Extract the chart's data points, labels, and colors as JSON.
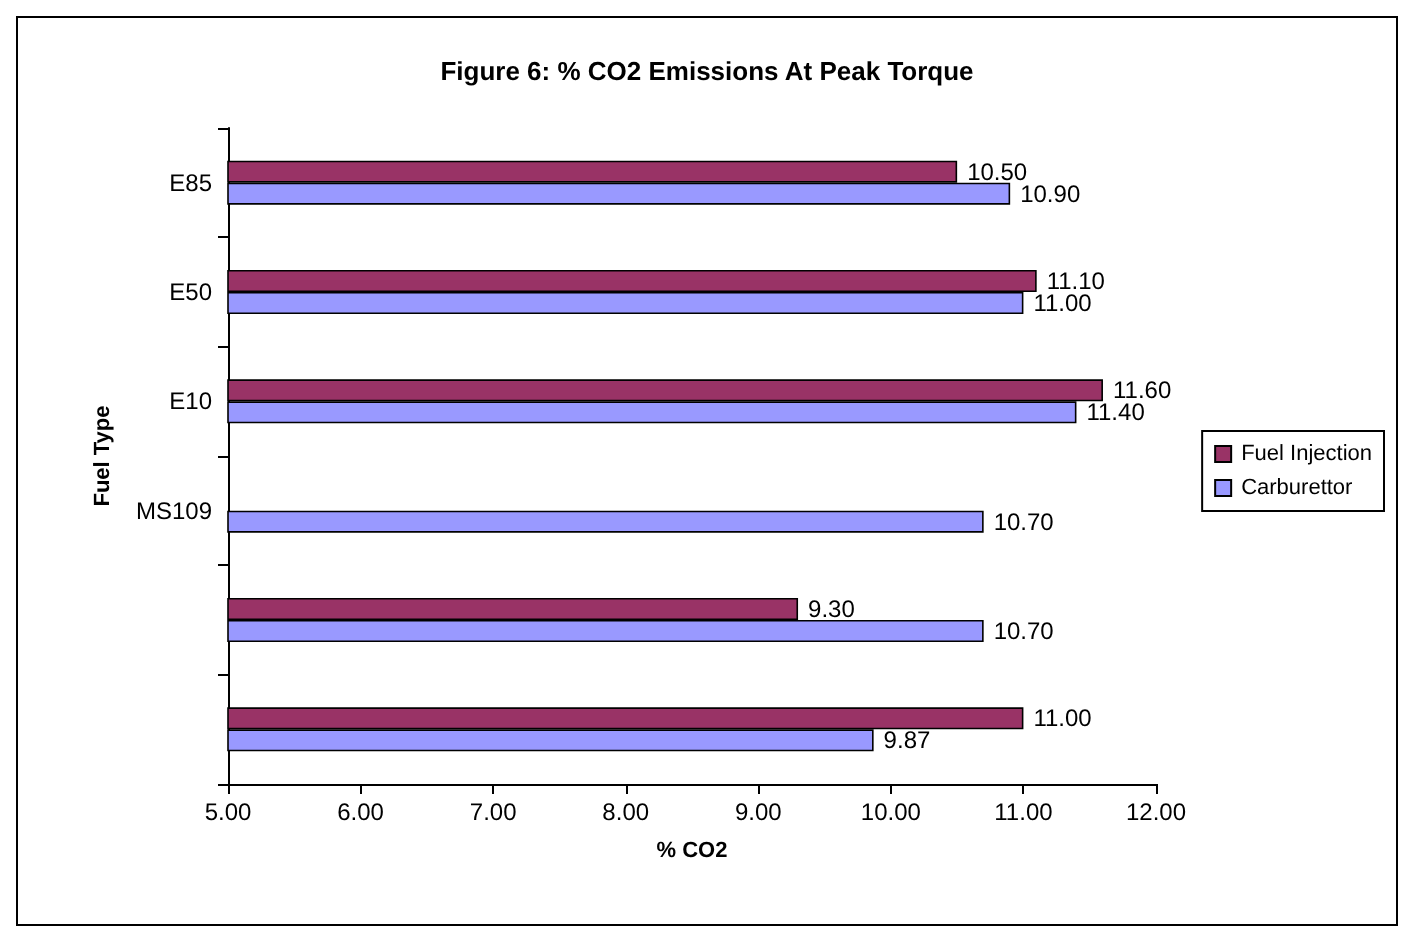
{
  "chart_data": {
    "type": "bar",
    "orientation": "horizontal",
    "title": "Figure 6: % CO2 Emissions At Peak Torque",
    "xlabel": "% CO2",
    "ylabel": "Fuel Type",
    "categories": [
      "E85",
      "E50",
      "E10",
      "MS109",
      null,
      null
    ],
    "series": [
      {
        "name": "Fuel Injection",
        "color": "#993366",
        "values": [
          10.5,
          11.1,
          11.6,
          null,
          9.3,
          11.0
        ],
        "value_labels": [
          "10.50",
          "11.10",
          "11.60",
          null,
          "9.30",
          "11.00"
        ]
      },
      {
        "name": "Carburettor",
        "color": "#9999ff",
        "values": [
          10.9,
          11.0,
          11.4,
          10.7,
          10.7,
          9.87
        ],
        "value_labels": [
          "10.90",
          "11.00",
          "11.40",
          "10.70",
          "10.70",
          "9.87"
        ]
      }
    ],
    "xlim": [
      5,
      12
    ],
    "xticks": [
      {
        "value": 5,
        "label": "5.00"
      },
      {
        "value": 6,
        "label": "6.00"
      },
      {
        "value": 7,
        "label": "7.00"
      },
      {
        "value": 8,
        "label": "8.00"
      },
      {
        "value": 9,
        "label": "9.00"
      },
      {
        "value": 10,
        "label": "10.00"
      },
      {
        "value": 11,
        "label": "11.00"
      },
      {
        "value": 12,
        "label": "12.00"
      }
    ],
    "legend": "right",
    "grid": false
  }
}
